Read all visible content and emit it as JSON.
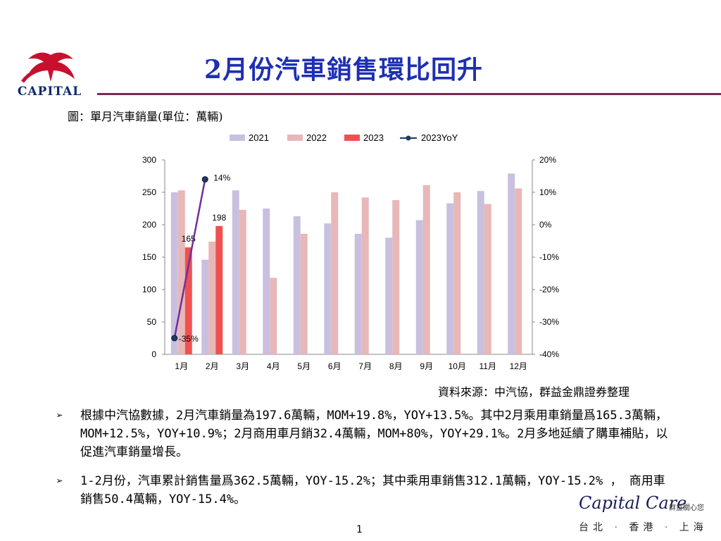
{
  "logo": {
    "text": "CAPITAL"
  },
  "title": "2月份汽車銷售環比回升",
  "caption": "圖：單月汽車銷量(單位：萬輛)",
  "source": "資料來源：中汽協，群益金鼎證券整理",
  "bullets": [
    "根據中汽協數據，2月汽車銷量為197.6萬輛，MOM+19.8%，YOY+13.5%。其中2月乘用車銷量爲165.3萬輛，MOM+12.5%，YOY+10.9%；2月商用車月銷32.4萬輛，MOM+80%，YOY+29.1%。2月多地延續了購車補貼，以促進汽車銷量增長。",
    "1-2月份，汽車累計銷售量爲362.5萬輛，YOY-15.2%；其中乘用車銷售312.1萬輛，YOY-15.2% ， 商用車銷售50.4萬輛，YOY-15.4%。"
  ],
  "brand": {
    "script": "Capital Care",
    "tag": "群益關心您",
    "cities": [
      "台北",
      "香港",
      "上海"
    ]
  },
  "page_number": "1",
  "colors": {
    "title": "#1e2fb4",
    "rule": "#7a2a55",
    "s2021": "#c9c0df",
    "s2022": "#e8b7b8",
    "s2023": "#f0504f",
    "yoy": "#7030a0"
  },
  "chart_data": {
    "type": "bar",
    "categories": [
      "1月",
      "2月",
      "3月",
      "4月",
      "5月",
      "6月",
      "7月",
      "8月",
      "9月",
      "10月",
      "11月",
      "12月"
    ],
    "series": [
      {
        "name": "2021",
        "values": [
          250,
          146,
          253,
          225,
          213,
          202,
          186,
          180,
          207,
          233,
          252,
          279
        ]
      },
      {
        "name": "2022",
        "values": [
          253,
          174,
          223,
          118,
          186,
          250,
          242,
          238,
          261,
          250,
          232,
          256
        ]
      },
      {
        "name": "2023",
        "values": [
          165,
          198,
          null,
          null,
          null,
          null,
          null,
          null,
          null,
          null,
          null,
          null
        ]
      }
    ],
    "line_series": {
      "name": "2023YoY",
      "values": [
        -35,
        14
      ],
      "axis": "right",
      "unit": "%"
    },
    "data_labels": {
      "bars_2023": [
        "165",
        "198"
      ],
      "yoy": [
        "-35%",
        "14%"
      ]
    },
    "ylim": [
      0,
      300
    ],
    "y_ticks": [
      "0",
      "50",
      "100",
      "150",
      "200",
      "250",
      "300"
    ],
    "y2lim": [
      -40,
      20
    ],
    "y2_ticks": [
      "-40%",
      "-30%",
      "-20%",
      "-10%",
      "0%",
      "10%",
      "20%"
    ],
    "legend": "top",
    "grid": false
  }
}
